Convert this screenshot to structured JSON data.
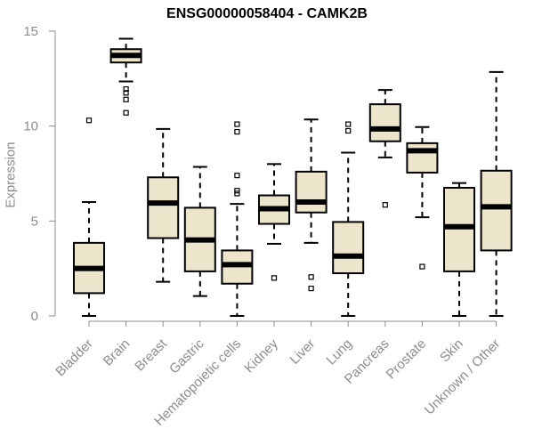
{
  "chart_data": {
    "type": "box",
    "title": "ENSG00000058404 - CAMK2B",
    "xlabel": "",
    "ylabel": "Expression",
    "ylim": [
      0,
      15
    ],
    "yticks": [
      0,
      5,
      10,
      15
    ],
    "grid": false,
    "box_fill": "#ece5cc",
    "box_stroke": "#000000",
    "axis_color": "#8c8c8c",
    "categories": [
      "Bladder",
      "Brain",
      "Breast",
      "Gastric",
      "Hematopoietic cells",
      "Kidney",
      "Liver",
      "Lung",
      "Pancreas",
      "Prostate",
      "Skin",
      "Unknown / Other"
    ],
    "boxes": [
      {
        "whisker_low": 0.0,
        "q1": 1.2,
        "median": 2.5,
        "q3": 3.85,
        "whisker_high": 6.0,
        "outliers": [
          10.3
        ]
      },
      {
        "whisker_low": 12.35,
        "q1": 13.35,
        "median": 13.72,
        "q3": 14.05,
        "whisker_high": 14.6,
        "outliers": [
          10.7,
          11.4,
          11.75,
          11.95
        ]
      },
      {
        "whisker_low": 1.8,
        "q1": 4.1,
        "median": 5.95,
        "q3": 7.3,
        "whisker_high": 9.85,
        "outliers": []
      },
      {
        "whisker_low": 1.05,
        "q1": 2.35,
        "median": 4.0,
        "q3": 5.7,
        "whisker_high": 7.85,
        "outliers": []
      },
      {
        "whisker_low": 0.0,
        "q1": 1.7,
        "median": 2.7,
        "q3": 3.45,
        "whisker_high": 5.9,
        "outliers": [
          6.45,
          6.6,
          7.4,
          9.7,
          10.1
        ]
      },
      {
        "whisker_low": 3.8,
        "q1": 4.85,
        "median": 5.65,
        "q3": 6.35,
        "whisker_high": 8.0,
        "outliers": [
          2.0
        ]
      },
      {
        "whisker_low": 3.85,
        "q1": 5.45,
        "median": 6.0,
        "q3": 7.6,
        "whisker_high": 10.35,
        "outliers": [
          1.45,
          2.05
        ]
      },
      {
        "whisker_low": 0.0,
        "q1": 2.25,
        "median": 3.15,
        "q3": 4.95,
        "whisker_high": 8.6,
        "outliers": [
          9.75,
          10.1
        ]
      },
      {
        "whisker_low": 8.35,
        "q1": 9.2,
        "median": 9.85,
        "q3": 11.15,
        "whisker_high": 11.9,
        "outliers": [
          5.85
        ]
      },
      {
        "whisker_low": 5.2,
        "q1": 7.55,
        "median": 8.7,
        "q3": 9.1,
        "whisker_high": 9.95,
        "outliers": [
          2.6
        ]
      },
      {
        "whisker_low": 0.0,
        "q1": 2.35,
        "median": 4.7,
        "q3": 6.75,
        "whisker_high": 7.0,
        "outliers": []
      },
      {
        "whisker_low": 0.0,
        "q1": 3.45,
        "median": 5.75,
        "q3": 7.65,
        "whisker_high": 12.85,
        "outliers": []
      }
    ]
  }
}
